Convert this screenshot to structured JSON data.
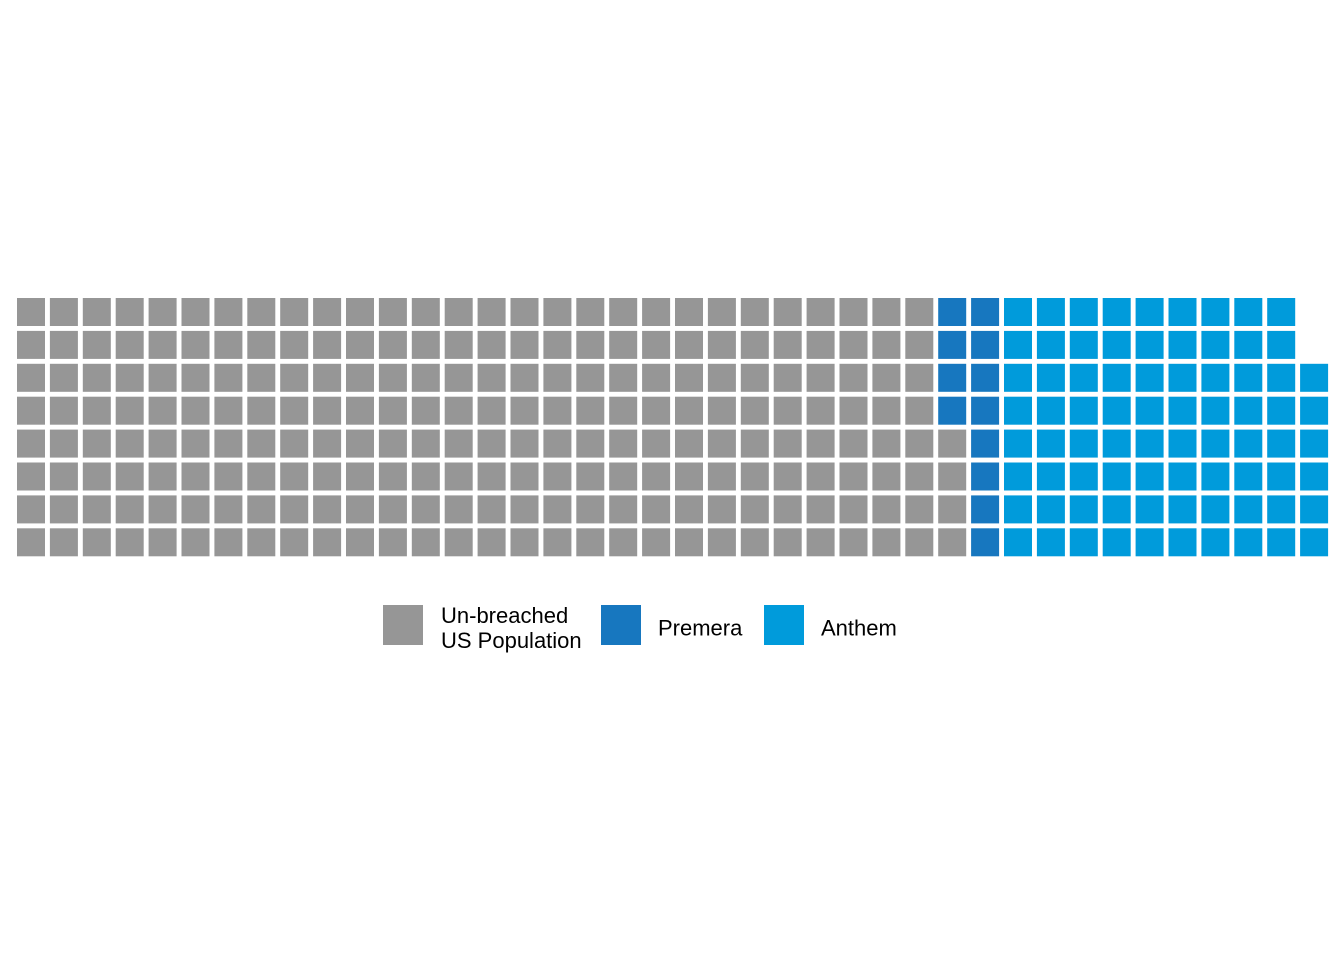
{
  "chart_data": {
    "type": "waffle",
    "layout": "column-major, bottom-to-top fill",
    "rows": 8,
    "columns": 40,
    "series": [
      {
        "name": "Un-breached US Population",
        "label_lines": [
          "Un-breached",
          "US Population"
        ],
        "values": 228,
        "color": "#969696"
      },
      {
        "name": "Premera",
        "label_lines": [
          "Premera"
        ],
        "values": 12,
        "color": "#1777bf"
      },
      {
        "name": "Anthem",
        "label_lines": [
          "Anthem"
        ],
        "values": 78,
        "color": "#009bdb"
      }
    ],
    "legend_position": "bottom"
  }
}
